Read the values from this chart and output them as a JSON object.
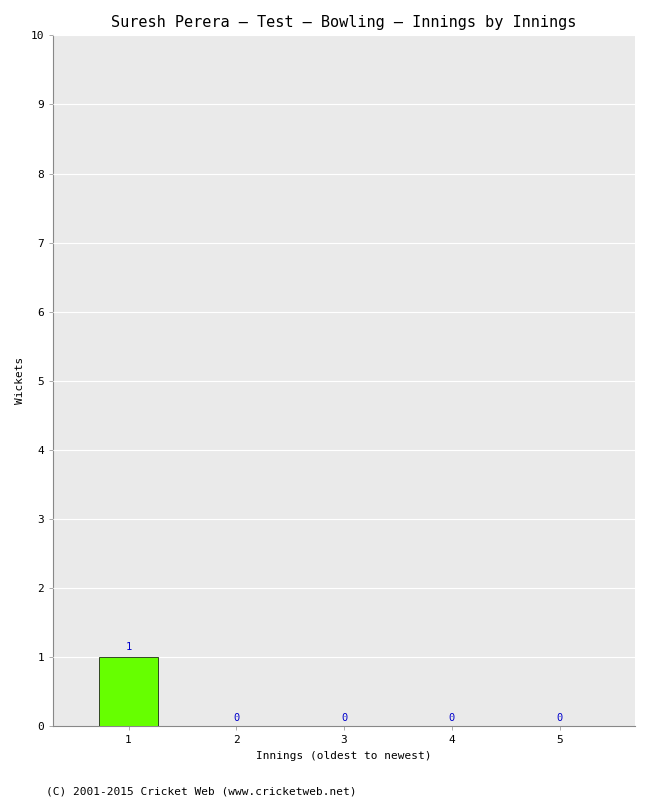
{
  "title": "Suresh Perera – Test – Bowling – Innings by Innings",
  "xlabel": "Innings (oldest to newest)",
  "ylabel": "Wickets",
  "x_values": [
    1,
    2,
    3,
    4,
    5
  ],
  "y_values": [
    1,
    0,
    0,
    0,
    0
  ],
  "bar_color": "#66ff00",
  "bar_edge_color": "#000000",
  "ylim": [
    0,
    10
  ],
  "yticks": [
    0,
    1,
    2,
    3,
    4,
    5,
    6,
    7,
    8,
    9,
    10
  ],
  "xticks": [
    1,
    2,
    3,
    4,
    5
  ],
  "background_color": "#ffffff",
  "plot_bg_color": "#eaeaea",
  "grid_color": "#ffffff",
  "annotation_color": "#0000cc",
  "footer": "(C) 2001-2015 Cricket Web (www.cricketweb.net)",
  "title_fontsize": 11,
  "axis_label_fontsize": 8,
  "tick_fontsize": 8,
  "annotation_fontsize": 7.5,
  "footer_fontsize": 8,
  "bar_width": 0.55,
  "xlim_left": 0.3,
  "xlim_right": 5.7
}
